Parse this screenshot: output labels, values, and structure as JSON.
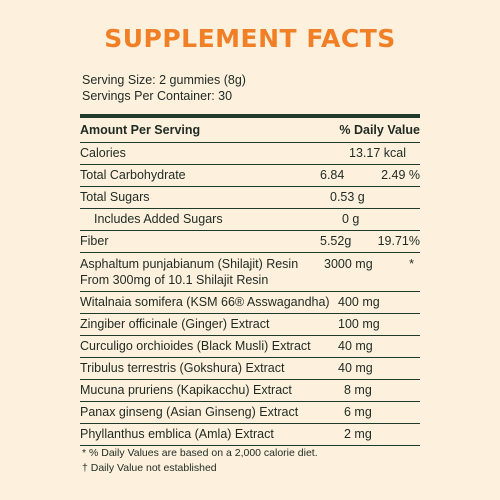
{
  "title": "SUPPLEMENT FACTS",
  "serving_size": "Serving Size: 2 gummies (8g)",
  "servings_per_container": "Servings Per Container: 30",
  "header": {
    "amount_label": "Amount Per Serving",
    "dv_label": "% Daily Value"
  },
  "rows": [
    {
      "name": "Calories",
      "amount": "13.17 kcal",
      "dv": ""
    },
    {
      "name": "Total Carbohydrate",
      "amount": "6.84",
      "dv": "2.49 %"
    },
    {
      "name": "Total Sugars",
      "amount": "0.53 g",
      "dv": ""
    },
    {
      "name": "Includes Added Sugars",
      "amount": "0 g",
      "dv": ""
    },
    {
      "name": "Fiber",
      "amount": "5.52g",
      "dv": "19.71%"
    },
    {
      "name": "Asphaltum  punjabianum (Shilajit) Resin",
      "name2": "From 300mg of 10.1 Shilajit Resin",
      "amount": "3000 mg",
      "dv": "*"
    },
    {
      "name": "Witalnaia somifera (KSM 66® Asswagandha)",
      "amount": "400 mg",
      "dv": ""
    },
    {
      "name": "Zingiber officinale (Ginger) Extract",
      "amount": "100 mg",
      "dv": ""
    },
    {
      "name": "Curculigo orchioides (Black Musli) Extract",
      "amount": "40 mg",
      "dv": ""
    },
    {
      "name": "Tribulus terrestris (Gokshura) Extract",
      "amount": "40 mg",
      "dv": ""
    },
    {
      "name": "Mucuna pruriens (Kapikacchu) Extract",
      "amount": "8 mg",
      "dv": ""
    },
    {
      "name": "Panax ginseng (Asian Ginseng) Extract",
      "amount": "6 mg",
      "dv": ""
    },
    {
      "name": "Phyllanthus emblica (Amla) Extract",
      "amount": "2 mg",
      "dv": ""
    }
  ],
  "footnotes": [
    "* % Daily Values are based on a 2,000 calorie diet.",
    "† Daily Value not established"
  ],
  "colors": {
    "accent": "#f07f26",
    "background": "#fdf0dd",
    "rule": "#1f3a2a"
  }
}
